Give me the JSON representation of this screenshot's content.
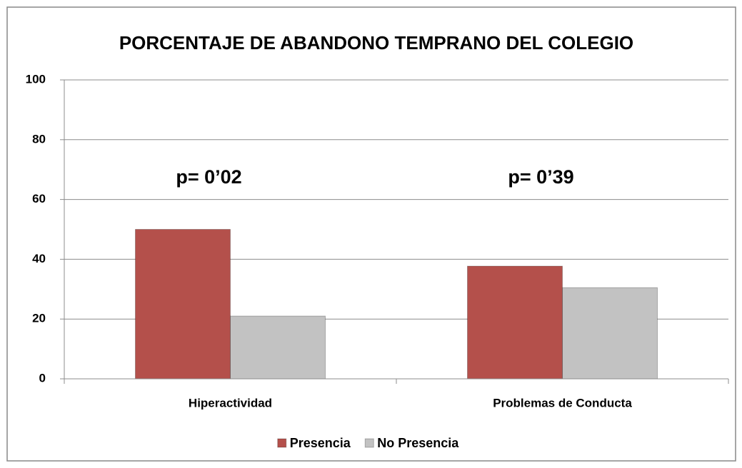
{
  "chart_data": {
    "type": "bar",
    "title": "PORCENTAJE DE ABANDONO TEMPRANO DEL COLEGIO",
    "categories": [
      "Hiperactividad",
      "Problemas de Conducta"
    ],
    "series": [
      {
        "name": "Presencia",
        "color": "#b4504b",
        "values": [
          50,
          37.7
        ]
      },
      {
        "name": "No Presencia",
        "color": "#c2c2c2",
        "values": [
          21,
          30.5
        ]
      }
    ],
    "annotations": [
      "p= 0’02",
      "p= 0’39"
    ],
    "ylim": [
      0,
      100
    ],
    "yticks": [
      0,
      20,
      40,
      60,
      80,
      100
    ],
    "grid": true,
    "legend": "bottom"
  }
}
